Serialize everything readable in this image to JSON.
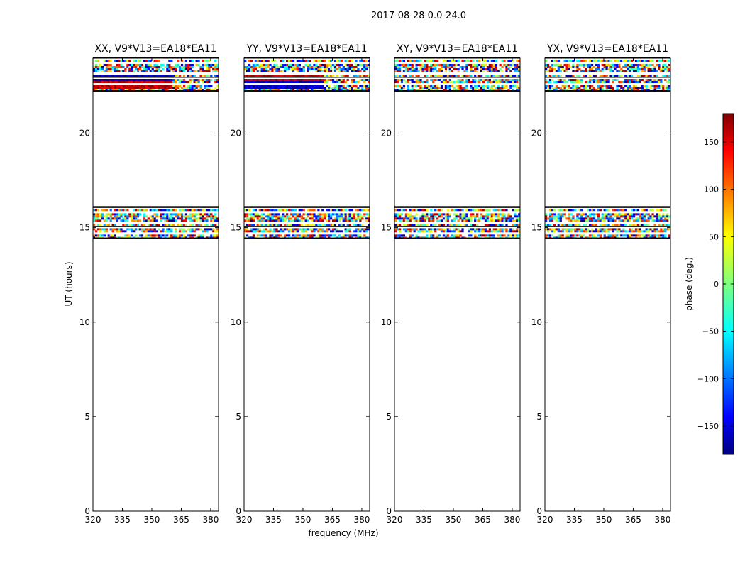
{
  "figure_title": "2017-08-28 0.0-24.0",
  "chart_data": {
    "type": "heatmap",
    "title": "2017-08-28 0.0-24.0",
    "xlabel": "frequency (MHz)",
    "ylabel": "UT (hours)",
    "xlim": [
      320,
      384
    ],
    "ylim": [
      0,
      24
    ],
    "x_ticks": [
      320,
      335,
      350,
      365,
      380
    ],
    "y_ticks": [
      0,
      5,
      10,
      15,
      20
    ],
    "panels": [
      {
        "title": "XX, V9*V13=EA18*EA11",
        "data_bands": [
          {
            "ut_start": 14.4,
            "ut_end": 16.1,
            "pattern": "noisy phase"
          },
          {
            "ut_start": 22.2,
            "ut_end": 24.0,
            "pattern": "noisy phase; coherent ~-180 and ~+180 deg blocks 320-360 MHz"
          }
        ]
      },
      {
        "title": "YY, V9*V13=EA18*EA11",
        "data_bands": [
          {
            "ut_start": 14.4,
            "ut_end": 16.1,
            "pattern": "noisy phase"
          },
          {
            "ut_start": 22.2,
            "ut_end": 24.0,
            "pattern": "noisy phase; coherent ~+180 and ~-180 deg blocks 320-360 MHz"
          }
        ]
      },
      {
        "title": "XY, V9*V13=EA18*EA11",
        "data_bands": [
          {
            "ut_start": 14.4,
            "ut_end": 16.1,
            "pattern": "noisy phase"
          },
          {
            "ut_start": 22.2,
            "ut_end": 24.0,
            "pattern": "noisy phase"
          }
        ]
      },
      {
        "title": "YX, V9*V13=EA18*EA11",
        "data_bands": [
          {
            "ut_start": 14.4,
            "ut_end": 16.1,
            "pattern": "noisy phase"
          },
          {
            "ut_start": 22.2,
            "ut_end": 24.0,
            "pattern": "noisy phase"
          }
        ]
      }
    ],
    "colorbar": {
      "label": "phase (deg.)",
      "range": [
        -180,
        180
      ],
      "ticks": [
        -150,
        -100,
        -50,
        0,
        50,
        100,
        150
      ],
      "tick_labels": [
        "−150",
        "−100",
        "−50",
        "0",
        "50",
        "100",
        "150"
      ],
      "colormap": "jet"
    }
  }
}
